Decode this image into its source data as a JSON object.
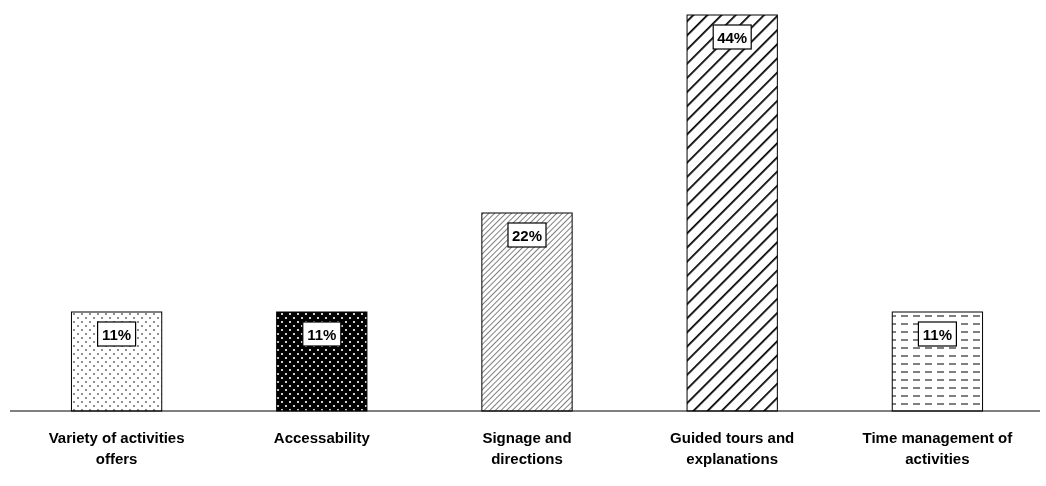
{
  "chart_data": {
    "type": "bar",
    "categories": [
      "Variety of activities offers",
      "Accessability",
      "Signage and directions",
      "Guided tours and explanations",
      "Time management of activities"
    ],
    "values": [
      11,
      11,
      22,
      44,
      11
    ],
    "colors": [
      "#000000",
      "#000000",
      "#000000",
      "#000000",
      "#000000"
    ],
    "value_labels": [
      "11%",
      "11%",
      "22%",
      "44%",
      "11%"
    ]
  }
}
